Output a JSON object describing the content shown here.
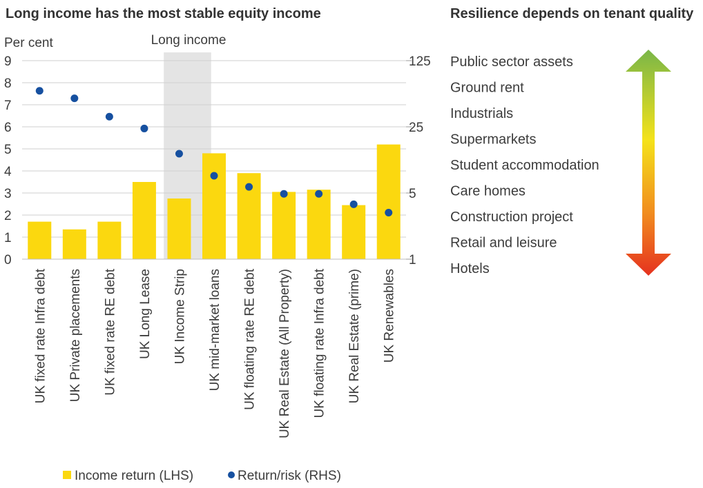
{
  "left_title": "Long income has the most stable equity income",
  "right_title": "Resilience depends on tenant quality",
  "chart_data": {
    "type": "bar",
    "title": "Long income has the most stable equity income",
    "ylabel": "Per cent",
    "highlight_label": "Long income",
    "highlight_categories": [
      "UK Income Strip"
    ],
    "categories": [
      "UK fixed rate Infra debt",
      "UK Private placements",
      "UK fixed rate RE debt",
      "UK Long Lease",
      "UK Income Strip",
      "UK mid-market loans",
      "UK floating rate RE debt",
      "UK Real Estate (All Property)",
      "UK floating rate Infra debt",
      "UK Real Estate (prime)",
      "UK Renewables"
    ],
    "series": [
      {
        "name": "Income return (LHS)",
        "type": "bar",
        "axis": "left",
        "color": "#fbd80f",
        "values": [
          1.7,
          1.35,
          1.7,
          3.5,
          2.75,
          4.8,
          3.9,
          3.05,
          3.15,
          2.45,
          5.2
        ]
      },
      {
        "name": "Return/risk (RHS)",
        "type": "scatter",
        "axis": "right",
        "color": "#1650a0",
        "values": [
          60,
          50,
          32,
          24,
          13,
          7.6,
          5.8,
          4.9,
          4.9,
          3.8,
          3.1
        ]
      }
    ],
    "y_left": {
      "min": 0,
      "max": 9,
      "ticks": [
        0,
        1,
        2,
        3,
        4,
        5,
        6,
        7,
        8,
        9
      ]
    },
    "y_right": {
      "scale": "log",
      "min": 1,
      "max": 125,
      "ticks": [
        1,
        5,
        25,
        125
      ]
    },
    "grid": true,
    "legend": "bottom"
  },
  "tenant_scale": {
    "items": [
      "Public sector assets",
      "Ground rent",
      "Industrials",
      "Supermarkets",
      "Student accommodation",
      "Care homes",
      "Construction project",
      "Retail and leisure",
      "Hotels"
    ],
    "arrow_colors": [
      "#7ab648",
      "#f4e21a",
      "#f18d1f",
      "#e5321f"
    ]
  }
}
